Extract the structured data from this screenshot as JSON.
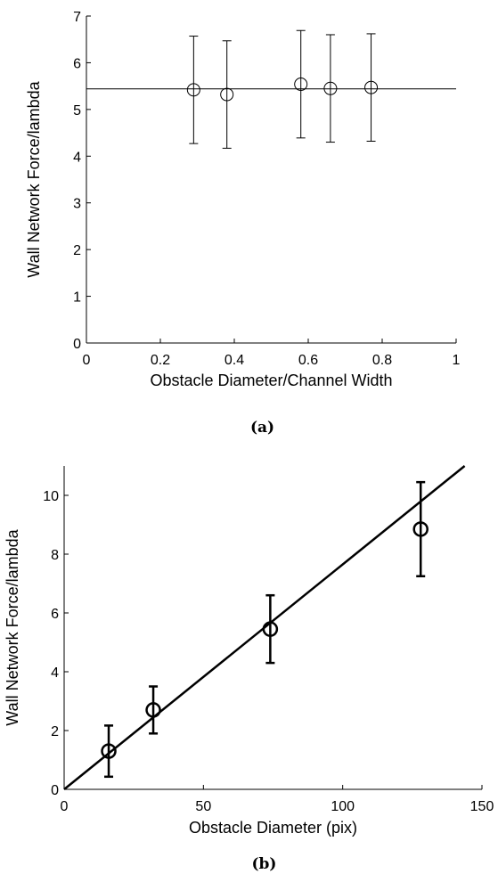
{
  "chart_data": [
    {
      "type": "scatter",
      "caption": "(a)",
      "xlabel": "Obstacle Diameter/Channel Width",
      "ylabel": "Wall Network Force/lambda",
      "xlim": [
        0,
        1
      ],
      "ylim": [
        0,
        7
      ],
      "xticks": [
        "0",
        "0.2",
        "0.4",
        "0.6",
        "0.8",
        "1"
      ],
      "yticks": [
        "0",
        "1",
        "2",
        "3",
        "4",
        "5",
        "6",
        "7"
      ],
      "grid": false,
      "marker": "open-circle",
      "series": [
        {
          "x": [
            0.29,
            0.38,
            0.58,
            0.66,
            0.77
          ],
          "y": [
            5.42,
            5.32,
            5.54,
            5.45,
            5.47
          ],
          "yerr": [
            1.15,
            1.15,
            1.15,
            1.15,
            1.15
          ]
        }
      ],
      "fit_line": {
        "kind": "horizontal",
        "y": 5.44
      }
    },
    {
      "type": "scatter",
      "caption": "(b)",
      "xlabel": "Obstacle Diameter (pix)",
      "ylabel": "Wall Network Force/lambda",
      "xlim": [
        0,
        150
      ],
      "ylim": [
        0,
        11
      ],
      "xticks": [
        "0",
        "50",
        "100",
        "150"
      ],
      "yticks": [
        "0",
        "2",
        "4",
        "6",
        "8",
        "10"
      ],
      "grid": false,
      "marker": "open-circle",
      "series": [
        {
          "x": [
            16,
            32,
            74,
            128
          ],
          "y": [
            1.3,
            2.7,
            5.45,
            8.85
          ],
          "yerr": [
            0.87,
            0.8,
            1.15,
            1.6
          ]
        }
      ],
      "fit_line": {
        "kind": "linear",
        "slope": 0.0765,
        "intercept": 0
      }
    }
  ]
}
